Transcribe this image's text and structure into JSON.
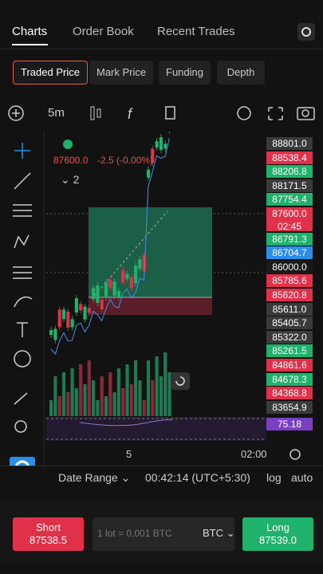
{
  "tabs": [
    "Charts",
    "Order Book",
    "Recent Trades"
  ],
  "price_types": [
    "Traded Price",
    "Mark Price",
    "Funding",
    "Depth"
  ],
  "interval": "5m",
  "legend": {
    "price": "87600.0",
    "change": "-2.5 (-0.00%)",
    "count": "2"
  },
  "price_labels": [
    {
      "text": "88801.0",
      "color": "#3a3a3a"
    },
    {
      "text": "88538.4",
      "color": "#e0304a"
    },
    {
      "text": "88206.8",
      "color": "#20b26c"
    },
    {
      "text": "88171.5",
      "color": "#3a3a3a"
    },
    {
      "text": "87754.4",
      "color": "#20b26c"
    },
    {
      "text": "87600.0",
      "color": "#e0304a",
      "sub": "02:45"
    },
    {
      "text": "86791.3",
      "color": "#20b26c"
    },
    {
      "text": "86704.7",
      "color": "#2a8ee8"
    },
    {
      "text": "86000.0",
      "color": "#1a1a1a"
    },
    {
      "text": "85785.6",
      "color": "#e0304a"
    },
    {
      "text": "85620.8",
      "color": "#e0304a"
    },
    {
      "text": "85611.0",
      "color": "#3a3a3a"
    },
    {
      "text": "85405.7",
      "color": "#3a3a3a"
    },
    {
      "text": "85322.0",
      "color": "#3a3a3a"
    },
    {
      "text": "85261.5",
      "color": "#20b26c"
    },
    {
      "text": "84861.6",
      "color": "#e0304a"
    },
    {
      "text": "84678.3",
      "color": "#20b26c"
    },
    {
      "text": "84368.8",
      "color": "#e0304a"
    },
    {
      "text": "83654.9",
      "color": "#3a3a3a"
    }
  ],
  "indicator_label": {
    "text": "75.18",
    "color": "#7b3fc4"
  },
  "x_labels": [
    "5",
    "02:00"
  ],
  "footer": {
    "date_range": "Date Range",
    "time": "00:42:14 (UTC+5:30)",
    "log": "log",
    "auto": "auto"
  },
  "order": {
    "short": "Short",
    "short_price": "87538.5",
    "lot": "1 lot = 0.001 BTC",
    "asset": "BTC",
    "long": "Long",
    "long_price": "87539.0"
  }
}
